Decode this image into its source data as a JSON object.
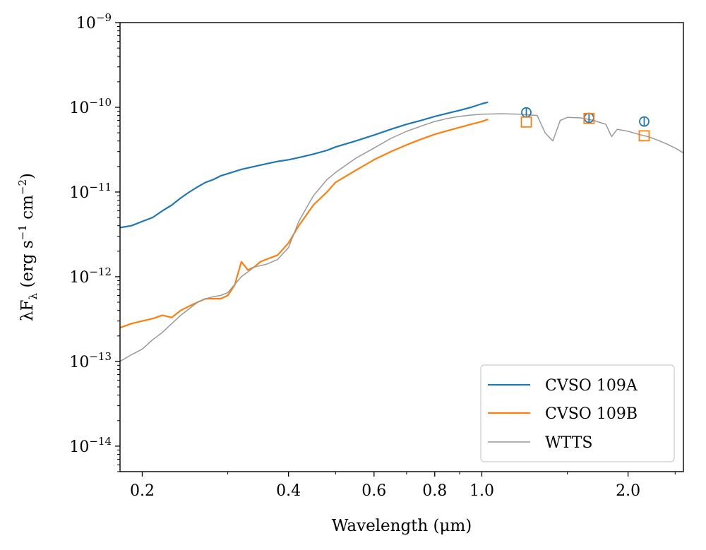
{
  "chart_data": {
    "type": "line",
    "xscale": "log",
    "yscale": "log",
    "xlabel": "Wavelength (μm)",
    "ylabel": "λF_λ (erg s⁻¹ cm⁻²)",
    "xlim": [
      0.18,
      2.6
    ],
    "ylim": [
      5e-15,
      1e-09
    ],
    "x_ticks": [
      {
        "value": 0.2,
        "label": "0.2"
      },
      {
        "value": 0.4,
        "label": "0.4"
      },
      {
        "value": 0.6,
        "label": "0.6"
      },
      {
        "value": 0.8,
        "label": "0.8"
      },
      {
        "value": 1.0,
        "label": "1.0"
      },
      {
        "value": 2.0,
        "label": "2.0"
      }
    ],
    "y_ticks": [
      {
        "value": 1e-09,
        "base": "10",
        "exp": "−9"
      },
      {
        "value": 1e-10,
        "base": "10",
        "exp": "−10"
      },
      {
        "value": 1e-11,
        "base": "10",
        "exp": "−11"
      },
      {
        "value": 1e-12,
        "base": "10",
        "exp": "−12"
      },
      {
        "value": 1e-13,
        "base": "10",
        "exp": "−13"
      },
      {
        "value": 1e-14,
        "base": "10",
        "exp": "−14"
      }
    ],
    "legend_position": "bottom-right",
    "series": [
      {
        "name": "CVSO 109A",
        "color": "#1f77b4",
        "x": [
          0.18,
          0.19,
          0.2,
          0.21,
          0.22,
          0.23,
          0.24,
          0.25,
          0.26,
          0.27,
          0.28,
          0.29,
          0.3,
          0.32,
          0.34,
          0.36,
          0.38,
          0.4,
          0.42,
          0.45,
          0.48,
          0.5,
          0.55,
          0.6,
          0.65,
          0.7,
          0.75,
          0.8,
          0.85,
          0.9,
          0.95,
          1.0,
          1.03
        ],
        "y": [
          3.8e-12,
          4e-12,
          4.5e-12,
          5e-12,
          6e-12,
          7e-12,
          8.5e-12,
          1e-11,
          1.15e-11,
          1.3e-11,
          1.4e-11,
          1.55e-11,
          1.65e-11,
          1.85e-11,
          2e-11,
          2.15e-11,
          2.3e-11,
          2.4e-11,
          2.55e-11,
          2.8e-11,
          3.1e-11,
          3.4e-11,
          4e-11,
          4.7e-11,
          5.5e-11,
          6.3e-11,
          7e-11,
          7.8e-11,
          8.5e-11,
          9.2e-11,
          1e-10,
          1.1e-10,
          1.15e-10
        ]
      },
      {
        "name": "CVSO 109B",
        "color": "#ff7f0e",
        "x": [
          0.18,
          0.19,
          0.2,
          0.21,
          0.22,
          0.23,
          0.24,
          0.25,
          0.26,
          0.27,
          0.28,
          0.29,
          0.3,
          0.31,
          0.32,
          0.33,
          0.34,
          0.35,
          0.36,
          0.38,
          0.4,
          0.42,
          0.45,
          0.48,
          0.5,
          0.55,
          0.6,
          0.65,
          0.7,
          0.75,
          0.8,
          0.85,
          0.9,
          0.95,
          1.0,
          1.03
        ],
        "y": [
          2.5e-13,
          2.8e-13,
          3e-13,
          3.2e-13,
          3.5e-13,
          3.3e-13,
          4e-13,
          4.5e-13,
          5e-13,
          5.5e-13,
          5.5e-13,
          5.5e-13,
          6e-13,
          8e-13,
          1.5e-12,
          1.2e-12,
          1.3e-12,
          1.5e-12,
          1.6e-12,
          1.8e-12,
          2.5e-12,
          4e-12,
          7e-12,
          1e-11,
          1.3e-11,
          1.8e-11,
          2.4e-11,
          3e-11,
          3.6e-11,
          4.2e-11,
          4.8e-11,
          5.3e-11,
          5.8e-11,
          6.3e-11,
          6.8e-11,
          7.2e-11
        ]
      },
      {
        "name": "WTTS",
        "color": "#999999",
        "x": [
          0.18,
          0.19,
          0.2,
          0.21,
          0.22,
          0.23,
          0.24,
          0.25,
          0.26,
          0.27,
          0.28,
          0.29,
          0.3,
          0.32,
          0.34,
          0.36,
          0.38,
          0.4,
          0.42,
          0.45,
          0.48,
          0.5,
          0.55,
          0.6,
          0.65,
          0.7,
          0.75,
          0.8,
          0.85,
          0.9,
          0.95,
          1.0,
          1.1,
          1.2,
          1.3,
          1.35,
          1.4,
          1.45,
          1.5,
          1.6,
          1.7,
          1.8,
          1.85,
          1.9,
          2.0,
          2.1,
          2.2,
          2.3,
          2.4,
          2.5,
          2.6
        ],
        "y": [
          1e-13,
          1.2e-13,
          1.4e-13,
          1.8e-13,
          2.2e-13,
          2.8e-13,
          3.5e-13,
          4.2e-13,
          5e-13,
          5.5e-13,
          5.8e-13,
          6e-13,
          6.5e-13,
          1e-12,
          1.3e-12,
          1.4e-12,
          1.6e-12,
          2.2e-12,
          4.5e-12,
          9e-12,
          1.4e-11,
          1.7e-11,
          2.5e-11,
          3.3e-11,
          4.3e-11,
          5.2e-11,
          6e-11,
          6.8e-11,
          7.4e-11,
          7.8e-11,
          8.1e-11,
          8.3e-11,
          8.4e-11,
          8.3e-11,
          8e-11,
          5e-11,
          4e-11,
          7e-11,
          7.6e-11,
          7.5e-11,
          7e-11,
          6.3e-11,
          4.5e-11,
          5.5e-11,
          5.2e-11,
          4.8e-11,
          4.5e-11,
          4.1e-11,
          3.7e-11,
          3.3e-11,
          2.9e-11
        ]
      }
    ],
    "photometry": [
      {
        "name": "CVSO 109A photometry",
        "marker": "circle-errorbar",
        "color": "#1f77b4",
        "x": [
          1.235,
          1.662,
          2.159
        ],
        "y": [
          8.7e-11,
          7.5e-11,
          6.8e-11
        ]
      },
      {
        "name": "CVSO 109B photometry",
        "marker": "square",
        "color": "#ff7f0e",
        "x": [
          1.235,
          1.662,
          2.159
        ],
        "y": [
          6.7e-11,
          7.4e-11,
          4.6e-11
        ]
      }
    ]
  }
}
